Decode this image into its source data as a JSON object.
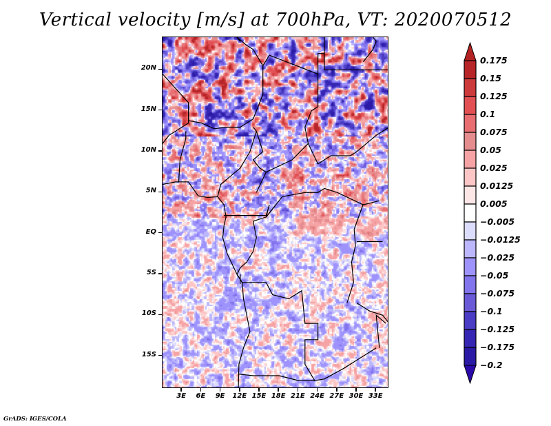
{
  "title": "Vertical velocity [m/s] at 700hPa, VT: 2020070512",
  "footer": "GrADS: IGES/COLA",
  "map": {
    "projection": "latlon",
    "lon_range": [
      0,
      35
    ],
    "lat_range": [
      -19,
      24
    ],
    "variable": "vertical velocity",
    "units": "m/s",
    "level": "700hPa",
    "valid_time": "2020070512",
    "y_ticks": [
      {
        "label": "20N",
        "lat": 20
      },
      {
        "label": "15N",
        "lat": 15
      },
      {
        "label": "10N",
        "lat": 10
      },
      {
        "label": "5N",
        "lat": 5
      },
      {
        "label": "EQ",
        "lat": 0
      },
      {
        "label": "5S",
        "lat": -5
      },
      {
        "label": "10S",
        "lat": -10
      },
      {
        "label": "15S",
        "lat": -15
      }
    ],
    "x_ticks": [
      {
        "label": "3E",
        "lon": 3
      },
      {
        "label": "6E",
        "lon": 6
      },
      {
        "label": "9E",
        "lon": 9
      },
      {
        "label": "12E",
        "lon": 12
      },
      {
        "label": "15E",
        "lon": 15
      },
      {
        "label": "18E",
        "lon": 18
      },
      {
        "label": "21E",
        "lon": 21
      },
      {
        "label": "24E",
        "lon": 24
      },
      {
        "label": "27E",
        "lon": 27
      },
      {
        "label": "30E",
        "lon": 30
      },
      {
        "label": "33E",
        "lon": 33
      }
    ]
  },
  "colorbar": {
    "orientation": "vertical",
    "extend": "both",
    "top_arrow_color": "#b22222",
    "bottom_arrow_color": "#2a0aa8",
    "bins_top_to_bottom": [
      {
        "color": "#b82528",
        "upper_label": "0.175"
      },
      {
        "color": "#cc3a3c",
        "upper_label": "0.15"
      },
      {
        "color": "#e25054",
        "upper_label": "0.125"
      },
      {
        "color": "#e86e72",
        "upper_label": "0.1"
      },
      {
        "color": "#e48c8e",
        "upper_label": "0.075"
      },
      {
        "color": "#f6a3a5",
        "upper_label": "0.05"
      },
      {
        "color": "#fcc6c7",
        "upper_label": "0.025"
      },
      {
        "color": "#fde6e6",
        "upper_label": "0.0125"
      },
      {
        "color": "#ffffff",
        "upper_label": "0.005"
      },
      {
        "color": "#dcdcfc",
        "upper_label": "-0.005"
      },
      {
        "color": "#bcb6fc",
        "upper_label": "-0.0125"
      },
      {
        "color": "#9e92fc",
        "upper_label": "-0.025"
      },
      {
        "color": "#8274ec",
        "upper_label": "-0.05"
      },
      {
        "color": "#6a5ad8",
        "upper_label": "-0.075"
      },
      {
        "color": "#4a3cc4",
        "upper_label": "-0.1"
      },
      {
        "color": "#3626b4",
        "upper_label": "-0.125"
      },
      {
        "color": "#2a1aa6",
        "upper_label": "-0.175"
      }
    ],
    "labels": [
      "0.175",
      "0.15",
      "0.125",
      "0.1",
      "0.075",
      "0.05",
      "0.025",
      "0.0125",
      "0.005",
      "−0.005",
      "−0.0125",
      "−0.025",
      "−0.05",
      "−0.075",
      "−0.1",
      "−0.125",
      "−0.175",
      "−0.2"
    ]
  }
}
